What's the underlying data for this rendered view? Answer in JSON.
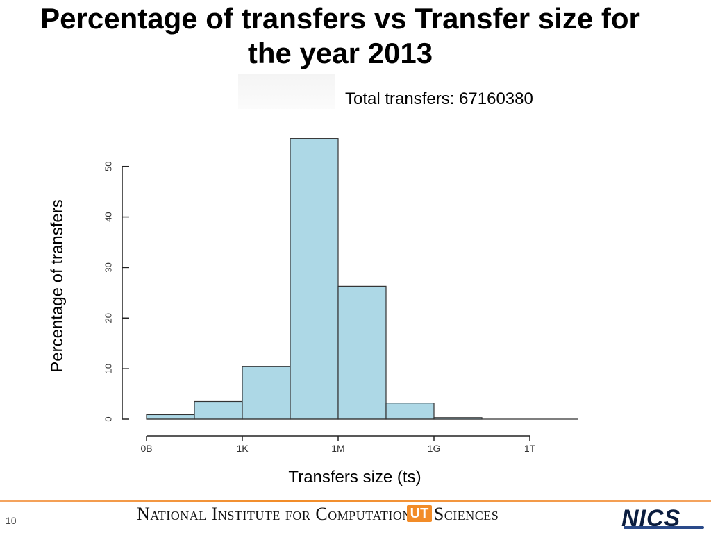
{
  "slide": {
    "title": "Percentage of transfers vs Transfer size for the year 2013",
    "page_number": "10"
  },
  "annotation": {
    "total": "Total transfers: 67160380"
  },
  "footer": {
    "org_name": "National Institute for Computational Sciences",
    "ut_mark": "UT",
    "logo": "NICS",
    "rule_color": "#f28c28"
  },
  "chart_data": {
    "type": "bar",
    "xlabel": "Transfers size (ts)",
    "ylabel": "Percentage of transfers",
    "bar_color": "#add8e6",
    "ylim": [
      0,
      56
    ],
    "yticks": [
      0,
      10,
      20,
      30,
      40,
      50
    ],
    "xticks": [
      "0B",
      "1K",
      "1M",
      "1G",
      "1T"
    ],
    "bins": [
      {
        "from": 0,
        "to": 1,
        "value": 0.9
      },
      {
        "from": 1,
        "to": 2,
        "value": 3.5
      },
      {
        "from": 2,
        "to": 3,
        "value": 10.4
      },
      {
        "from": 3,
        "to": 4,
        "value": 55.5
      },
      {
        "from": 4,
        "to": 5,
        "value": 26.3
      },
      {
        "from": 5,
        "to": 6,
        "value": 3.2
      },
      {
        "from": 6,
        "to": 7,
        "value": 0.3
      },
      {
        "from": 7,
        "to": 8,
        "value": 0
      },
      {
        "from": 8,
        "to": 9,
        "value": 0
      }
    ]
  }
}
